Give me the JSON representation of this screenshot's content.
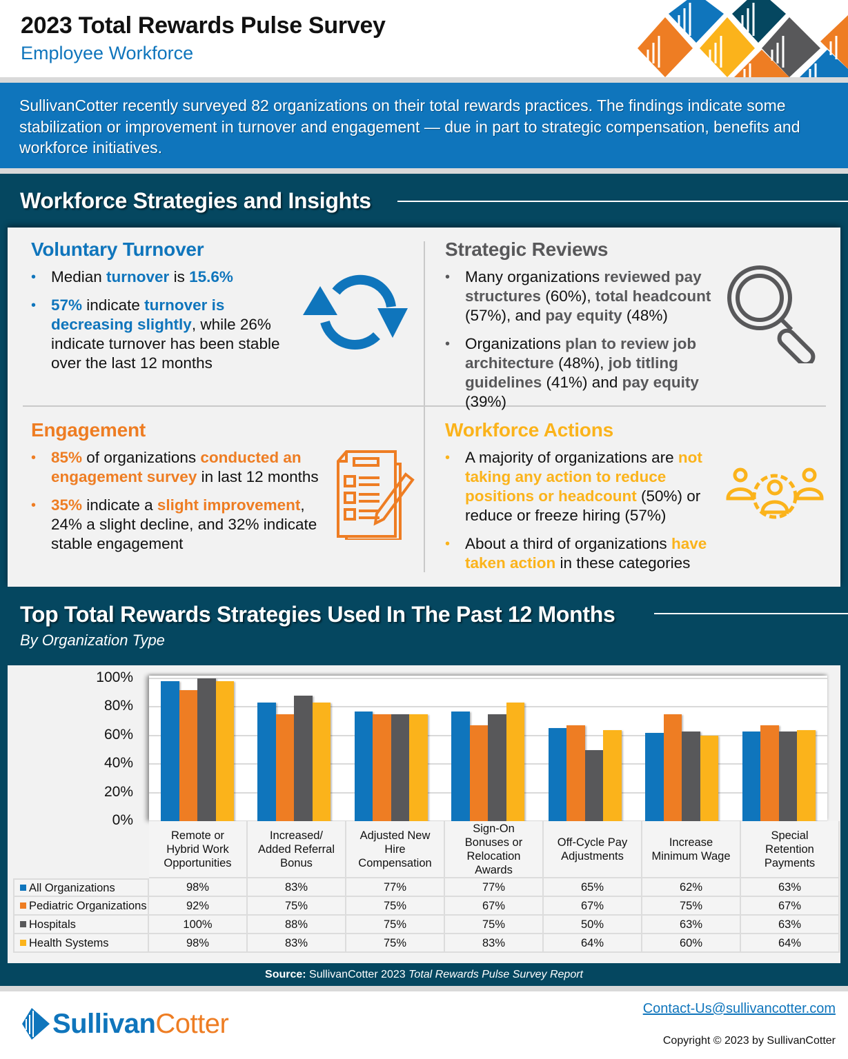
{
  "header": {
    "title": "2023 Total Rewards Pulse Survey",
    "subtitle": "Employee Workforce"
  },
  "intro": {
    "text": "SullivanCotter recently surveyed 82 organizations on their total rewards practices. The findings indicate some stabilization or improvement in turnover and engagement — due in part to strategic compensation, benefits and workforce initiatives."
  },
  "insights": {
    "heading": "Workforce Strategies and Insights",
    "voluntary_turnover": {
      "title": "Voluntary Turnover",
      "icon": "refresh-cycle-icon",
      "color": "#0f75bc",
      "bullets": [
        [
          {
            "t": "Median ",
            "h": false
          },
          {
            "t": "turnover",
            "h": true
          },
          {
            "t": " is ",
            "h": false
          },
          {
            "t": "15.6%",
            "h": true
          }
        ],
        [
          {
            "t": "57%",
            "h": true
          },
          {
            "t": " indicate ",
            "h": false
          },
          {
            "t": "turnover is decreasing slightly",
            "h": true
          },
          {
            "t": ", while 26% indicate turnover has been stable over the last 12 months",
            "h": false
          }
        ]
      ]
    },
    "strategic_reviews": {
      "title": "Strategic Reviews",
      "icon": "magnifying-glass-icon",
      "color": "#58585a",
      "bullets": [
        [
          {
            "t": "Many organizations ",
            "h": false
          },
          {
            "t": "reviewed pay structures",
            "h": true
          },
          {
            "t": " (60%), ",
            "h": false
          },
          {
            "t": "total headcount",
            "h": true
          },
          {
            "t": " (57%), and ",
            "h": false
          },
          {
            "t": "pay equity",
            "h": true
          },
          {
            "t": " (48%)",
            "h": false
          }
        ],
        [
          {
            "t": "Organizations ",
            "h": false
          },
          {
            "t": "plan to review job architecture",
            "h": true
          },
          {
            "t": " (48%), ",
            "h": false
          },
          {
            "t": "job titling guidelines",
            "h": true
          },
          {
            "t": " (41%) and ",
            "h": false
          },
          {
            "t": "pay equity",
            "h": true
          },
          {
            "t": " (39%)",
            "h": false
          }
        ]
      ]
    },
    "engagement": {
      "title": "Engagement",
      "icon": "survey-checklist-icon",
      "color": "#ee7d23",
      "bullets": [
        [
          {
            "t": "85%",
            "h": true
          },
          {
            "t": " of organizations ",
            "h": false
          },
          {
            "t": "conducted an engagement survey",
            "h": true
          },
          {
            "t": " in last 12 months",
            "h": false
          }
        ],
        [
          {
            "t": "35%",
            "h": true
          },
          {
            "t": " indicate a ",
            "h": false
          },
          {
            "t": "slight improvement",
            "h": true
          },
          {
            "t": ", 24% a slight decline, and 32% indicate stable engagement",
            "h": false
          }
        ]
      ]
    },
    "workforce_actions": {
      "title": "Workforce Actions",
      "icon": "team-gear-icon",
      "color": "#fbb31b",
      "bullets": [
        [
          {
            "t": "A majority of organizations are ",
            "h": false
          },
          {
            "t": "not taking any action to reduce positions or headcount",
            "h": true
          },
          {
            "t": " (50%) or reduce or freeze hiring (57%)",
            "h": false
          }
        ],
        [
          {
            "t": "About a third of organizations ",
            "h": false
          },
          {
            "t": "have taken action",
            "h": true
          },
          {
            "t": " in these categories",
            "h": false
          }
        ]
      ]
    }
  },
  "chart_section": {
    "heading": "Top Total Rewards Strategies Used In The Past 12 Months",
    "subheading": "By Organization Type",
    "source_label": "Source:",
    "source_text": " SullivanCotter 2023 ",
    "source_italic": "Total Rewards Pulse Survey Report"
  },
  "chart_data": {
    "type": "bar",
    "title": "Top Total Rewards Strategies Used In The Past 12 Months",
    "subtitle": "By Organization Type",
    "xlabel": "",
    "ylabel": "",
    "ylim": [
      0,
      100
    ],
    "yticks": [
      "0%",
      "20%",
      "40%",
      "60%",
      "80%",
      "100%"
    ],
    "grid": true,
    "legend_position": "table-left",
    "categories": [
      "Remote or Hybrid Work Opportunities",
      "Increased/ Added Referral Bonus",
      "Adjusted New Hire Compensation",
      "Sign-On Bonuses or Relocation Awards",
      "Off-Cycle Pay Adjustments",
      "Increase Minimum Wage",
      "Special Retention Payments"
    ],
    "series": [
      {
        "name": "All Organizations",
        "color": "#0f75bc",
        "values": [
          98,
          83,
          77,
          77,
          65,
          62,
          63
        ]
      },
      {
        "name": "Pediatric Organizations",
        "color": "#ee7d23",
        "values": [
          92,
          75,
          75,
          67,
          67,
          75,
          67
        ]
      },
      {
        "name": "Hospitals",
        "color": "#58585a",
        "values": [
          100,
          88,
          75,
          75,
          50,
          63,
          63
        ]
      },
      {
        "name": "Health Systems",
        "color": "#fbb31b",
        "values": [
          98,
          83,
          75,
          83,
          64,
          60,
          64
        ]
      }
    ]
  },
  "footer": {
    "logo_part1": "Sullivan",
    "logo_part2": "Cotter",
    "contact": "Contact-Us@sullivancotter.com",
    "copyright": "Copyright © 2023 by SullivanCotter"
  },
  "colors": {
    "blue": "#0f75bc",
    "orange": "#ee7d23",
    "gray": "#58585a",
    "yellow": "#fbb31b",
    "dark_teal": "#054760"
  }
}
